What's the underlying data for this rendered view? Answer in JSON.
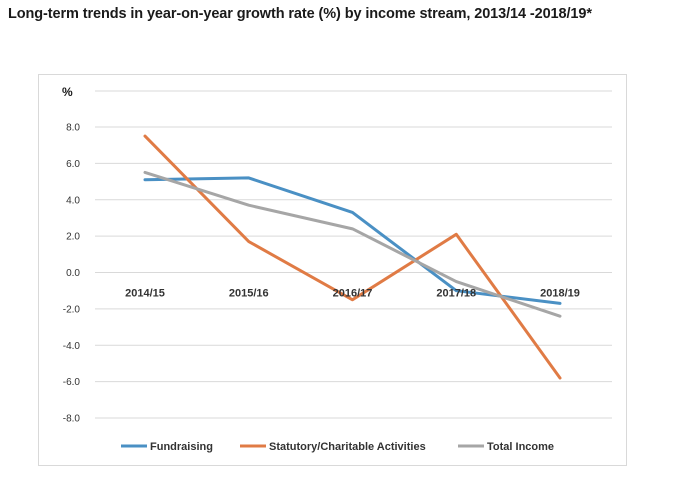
{
  "title": "Long-term trends in year-on-year growth rate (%) by income stream, 2013/14 -2018/19*",
  "chart_data": {
    "type": "line",
    "title": "Long-term trends in year-on-year growth rate (%) by income stream, 2013/14 -2018/19*",
    "ylabel": "%",
    "xlabel": "",
    "ylim": [
      -8.0,
      8.0
    ],
    "yticks": [
      8.0,
      6.0,
      4.0,
      2.0,
      0.0,
      -2.0,
      -4.0,
      -6.0,
      -8.0
    ],
    "ytick_labels": [
      "8.0",
      "6.0",
      "4.0",
      "2.0",
      "0.0",
      "-2.0",
      "-4.0",
      "-6.0",
      "-8.0"
    ],
    "grid": true,
    "legend_position": "bottom",
    "categories": [
      "2014/15",
      "2015/16",
      "2016/17",
      "2017/18",
      "2018/19"
    ],
    "series": [
      {
        "name": "Fundraising",
        "color": "#4a90c4",
        "values": [
          5.1,
          5.2,
          3.3,
          -1.0,
          -1.7
        ]
      },
      {
        "name": "Statutory/Charitable Activities",
        "color": "#e07b45",
        "values": [
          7.5,
          1.7,
          -1.5,
          2.1,
          -5.8
        ]
      },
      {
        "name": "Total Income",
        "color": "#a6a6a6",
        "values": [
          5.5,
          3.7,
          2.4,
          -0.5,
          -2.4
        ]
      }
    ]
  }
}
